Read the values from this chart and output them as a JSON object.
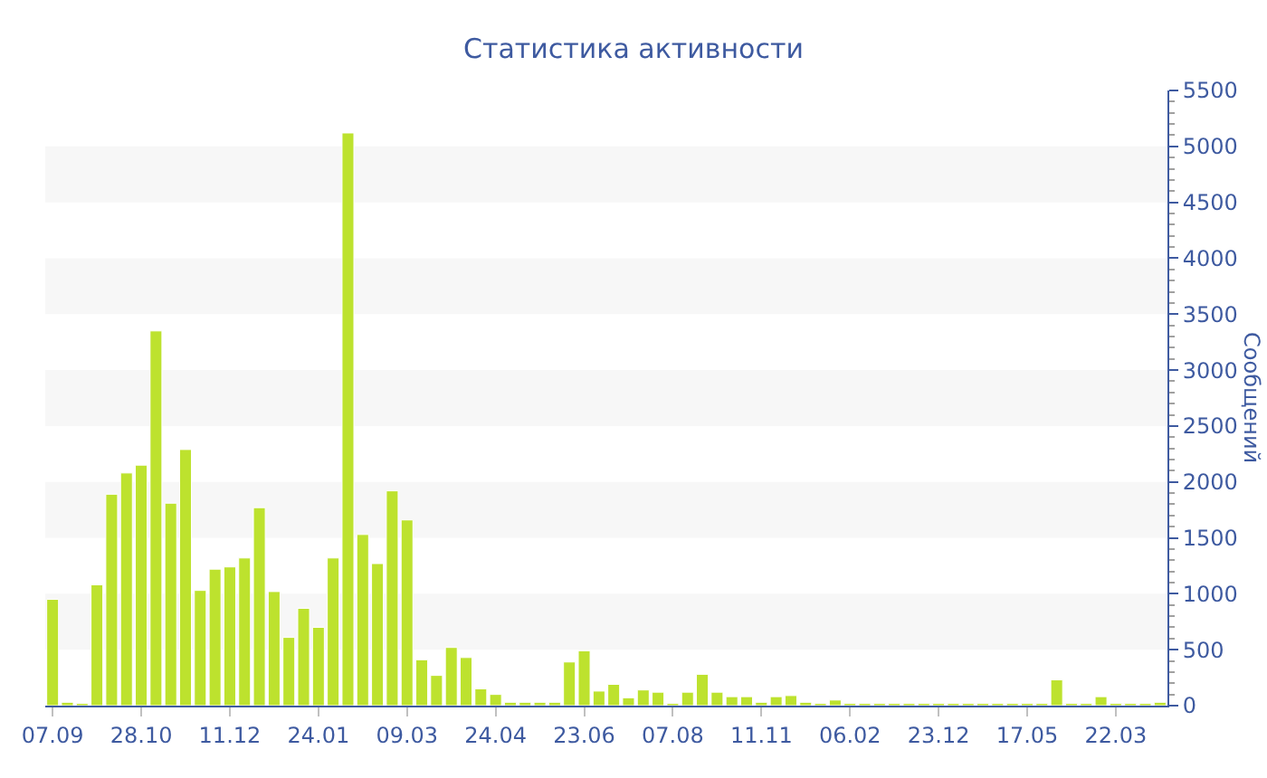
{
  "chart_data": {
    "type": "bar",
    "title": "Статистика активности",
    "ylabel": "Сообщений",
    "categories": [
      "07.09",
      null,
      null,
      null,
      null,
      null,
      "28.10",
      null,
      null,
      null,
      null,
      null,
      "11.12",
      null,
      null,
      null,
      null,
      null,
      "24.01",
      null,
      null,
      null,
      null,
      null,
      "09.03",
      null,
      null,
      null,
      null,
      null,
      "24.04",
      null,
      null,
      null,
      null,
      null,
      "23.06",
      null,
      null,
      null,
      null,
      null,
      "07.08",
      null,
      null,
      null,
      null,
      null,
      "11.11",
      null,
      null,
      null,
      null,
      null,
      "06.02",
      null,
      null,
      null,
      null,
      null,
      "23.12",
      null,
      null,
      null,
      null,
      null,
      "17.05",
      null,
      null,
      null,
      null,
      null,
      "22.03",
      null,
      null,
      null
    ],
    "values": [
      950,
      30,
      20,
      1080,
      1890,
      2080,
      2150,
      3350,
      1810,
      2290,
      1030,
      1220,
      1240,
      1320,
      1770,
      1020,
      610,
      870,
      700,
      1320,
      5120,
      1530,
      1270,
      1920,
      1660,
      410,
      270,
      520,
      430,
      150,
      100,
      30,
      30,
      30,
      30,
      390,
      490,
      130,
      190,
      70,
      140,
      120,
      20,
      120,
      280,
      120,
      80,
      80,
      30,
      80,
      90,
      30,
      20,
      50,
      20,
      20,
      20,
      20,
      20,
      20,
      20,
      20,
      20,
      20,
      20,
      20,
      20,
      20,
      230,
      20,
      20,
      80,
      20,
      20,
      20,
      30
    ],
    "color": "#bde22e",
    "ylim": [
      0,
      5500
    ],
    "yticks": [
      0,
      500,
      1000,
      1500,
      2000,
      2500,
      3000,
      3500,
      4000,
      4500,
      5000,
      5500
    ],
    "bands": [
      {
        "axis": "y",
        "from": 500,
        "to": 1000,
        "color": "#f7f7f7"
      },
      {
        "axis": "y",
        "from": 1500,
        "to": 2000,
        "color": "#f7f7f7"
      },
      {
        "axis": "y",
        "from": 2500,
        "to": 3000,
        "color": "#f7f7f7"
      },
      {
        "axis": "y",
        "from": 3500,
        "to": 4000,
        "color": "#f7f7f7"
      },
      {
        "axis": "y",
        "from": 4500,
        "to": 5000,
        "color": "#f7f7f7"
      }
    ],
    "grid": false,
    "legend": false
  }
}
